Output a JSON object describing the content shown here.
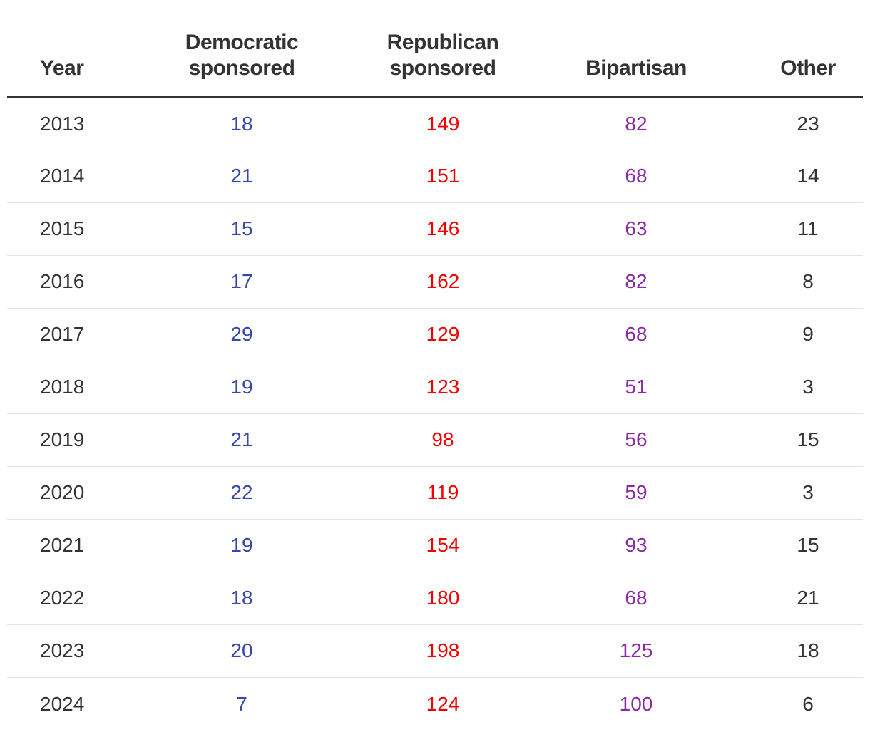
{
  "colors": {
    "democratic": "#3848a8",
    "republican": "#f00000",
    "bipartisan": "#8a2aa3",
    "other": "#333333",
    "text": "#333333",
    "rule": "#333333",
    "row_divider": "#e4e4e4"
  },
  "table": {
    "headers": {
      "year": "Year",
      "democratic": [
        "Democratic",
        "sponsored"
      ],
      "republican": [
        "Republican",
        "sponsored"
      ],
      "bipartisan": "Bipartisan",
      "other": "Other"
    }
  },
  "chart_data": {
    "type": "table",
    "columns": [
      "Year",
      "Democratic sponsored",
      "Republican sponsored",
      "Bipartisan",
      "Other"
    ],
    "rows": [
      [
        "2013",
        "18",
        "149",
        "82",
        "23"
      ],
      [
        "2014",
        "21",
        "151",
        "68",
        "14"
      ],
      [
        "2015",
        "15",
        "146",
        "63",
        "11"
      ],
      [
        "2016",
        "17",
        "162",
        "82",
        "8"
      ],
      [
        "2017",
        "29",
        "129",
        "68",
        "9"
      ],
      [
        "2018",
        "19",
        "123",
        "51",
        "3"
      ],
      [
        "2019",
        "21",
        "98",
        "56",
        "15"
      ],
      [
        "2020",
        "22",
        "119",
        "59",
        "3"
      ],
      [
        "2021",
        "19",
        "154",
        "93",
        "15"
      ],
      [
        "2022",
        "18",
        "180",
        "68",
        "21"
      ],
      [
        "2023",
        "20",
        "198",
        "125",
        "18"
      ],
      [
        "2024",
        "7",
        "124",
        "100",
        "6"
      ]
    ]
  }
}
